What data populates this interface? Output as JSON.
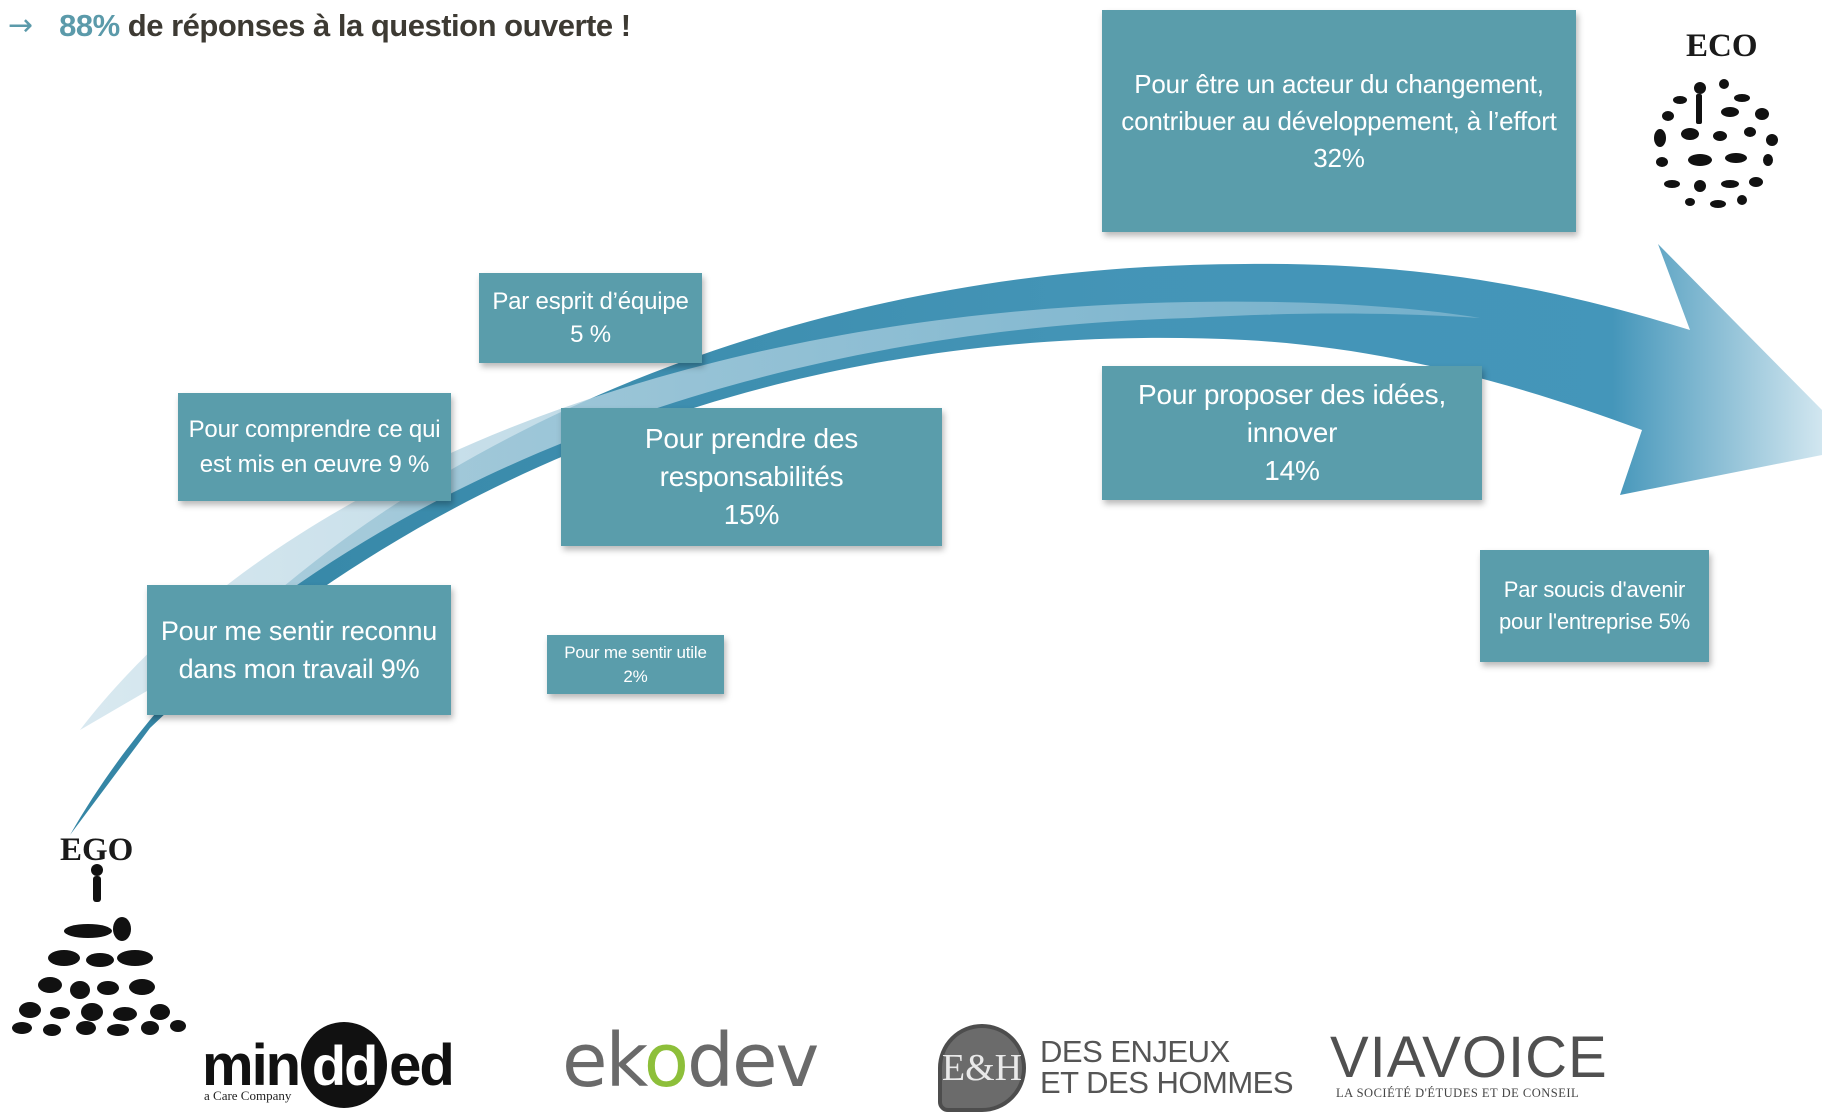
{
  "header": {
    "arrow_glyph": "→",
    "percent": "88%",
    "rest": " de réponses à la question ouverte !"
  },
  "poles": {
    "ego": "EGO",
    "eco": "ECO"
  },
  "reasons": [
    {
      "id": "acteur",
      "lines": [
        "Pour être un acteur du changement,",
        "contribuer au développement, à l’effort",
        "32%"
      ]
    },
    {
      "id": "equipe",
      "lines": [
        "Par esprit d’équipe",
        "5 %"
      ]
    },
    {
      "id": "comprendre",
      "lines": [
        "Pour comprendre ce qui",
        "est mis en œuvre 9 %"
      ]
    },
    {
      "id": "responsabilites",
      "lines": [
        "Pour prendre des responsabilités",
        "15%"
      ]
    },
    {
      "id": "innover",
      "lines": [
        "Pour proposer des idées, innover",
        "14%"
      ]
    },
    {
      "id": "reconnu",
      "lines": [
        "Pour me sentir reconnu",
        "dans mon travail 9%"
      ]
    },
    {
      "id": "utile",
      "lines": [
        "Pour me sentir utile",
        "2%"
      ]
    },
    {
      "id": "avenir",
      "lines": [
        "Par soucis d'avenir",
        "pour l'entreprise 5%"
      ]
    }
  ],
  "logos": {
    "minded_a": "min",
    "minded_dd": "dd",
    "minded_b": "ed",
    "minded_sub": "a Care Company",
    "ekodev_a": "ek",
    "ekodev_o": "o",
    "ekodev_b": "dev",
    "eh_badge": "E&H",
    "eh_line1": "DES ENJEUX",
    "eh_line2": "ET DES HOMMES",
    "viavoice": "VIAVOICE",
    "viavoice_sub": "LA SOCIÉTÉ D'ÉTUDES ET DE CONSEIL"
  },
  "colors": {
    "box": "#5a9dab",
    "accent": "#5b9aaa",
    "arrow_dark": "#2f86a8",
    "arrow_light": "#8fc0d6"
  }
}
